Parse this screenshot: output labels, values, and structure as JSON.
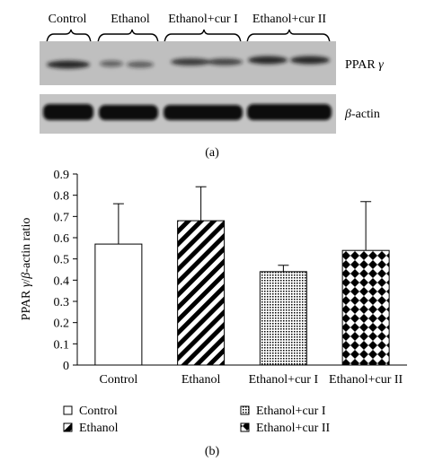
{
  "panel_a": {
    "group_labels": [
      "Control",
      "Ethanol",
      "Ethanol+cur I",
      "Ethanol+cur II"
    ],
    "bands": [
      {
        "name": "PPAR γ",
        "label_main": "PPAR ",
        "label_symbol": "γ"
      },
      {
        "name": "β-actin",
        "label_symbol": "β",
        "label_main": "-actin"
      }
    ],
    "caption": "(a)"
  },
  "panel_b": {
    "caption": "(b)",
    "legend": [
      "Control",
      "Ethanol",
      "Ethanol+cur I",
      "Ethanol+cur II"
    ]
  },
  "chart_data": {
    "type": "bar",
    "categories": [
      "Control",
      "Ethanol",
      "Ethanol+cur I",
      "Ethanol+cur II"
    ],
    "values": [
      0.57,
      0.68,
      0.44,
      0.54
    ],
    "error_upper": [
      0.76,
      0.84,
      0.47,
      0.77
    ],
    "ylabel": "PPAR γ/β-actin ratio",
    "ylim": [
      0,
      0.9
    ],
    "yticks": [
      "0",
      "0.1",
      "0.2",
      "0.3",
      "0.4",
      "0.5",
      "0.6",
      "0.7",
      "0.8",
      "0.9"
    ],
    "xlabel": "",
    "grid": false,
    "legend_position": "bottom",
    "fill_patterns": [
      "white",
      "diagonal-stripes",
      "fine-dots",
      "checkerboard-diamond"
    ]
  },
  "colors": {
    "ink": "#000000",
    "paper": "#ffffff",
    "blot_background": "#bdbdbd",
    "band": "#111111"
  }
}
